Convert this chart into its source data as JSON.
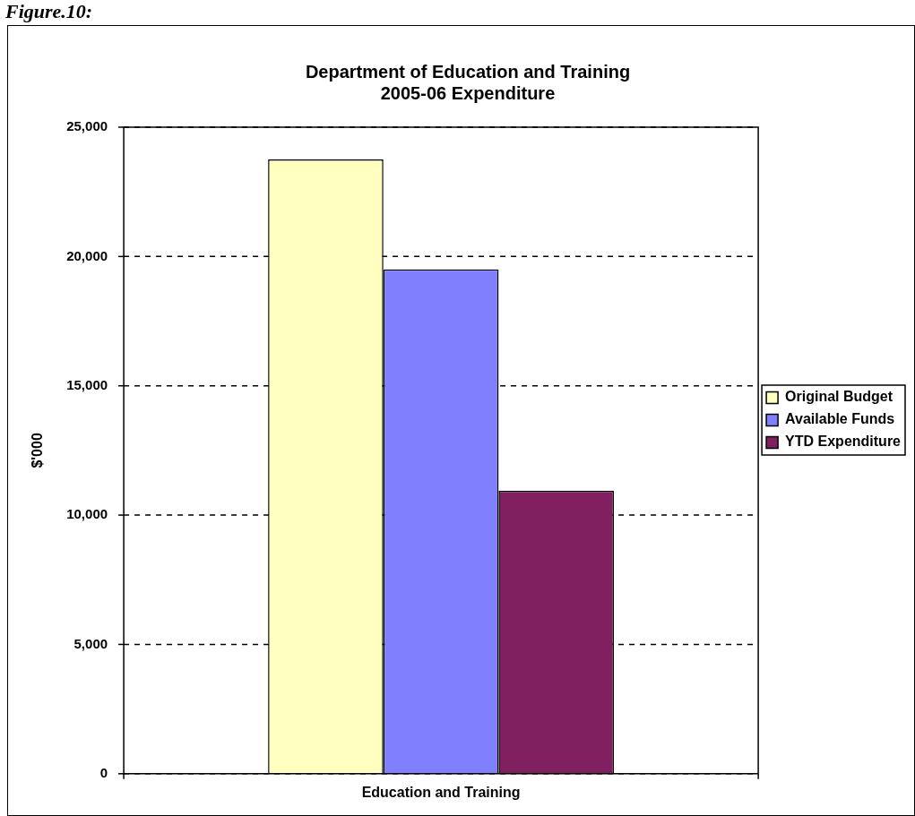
{
  "chart_data": {
    "type": "bar",
    "title": [
      "Department of Education and Training",
      "2005-06 Expenditure"
    ],
    "xlabel": "Education and Training",
    "ylabel": "$'000",
    "categories": [
      null
    ],
    "series": [
      {
        "name": "Original Budget",
        "color": "#ffffc0",
        "values": [
          23750
        ]
      },
      {
        "name": "Available Funds",
        "color": "#8080ff",
        "values": [
          19500
        ]
      },
      {
        "name": "YTD Expenditure",
        "color": "#802060",
        "values": [
          10950
        ]
      }
    ],
    "ylim": [
      0,
      25000
    ],
    "yticks": [
      0,
      {
        "value": 5000,
        "label": "5,000"
      },
      {
        "value": 10000,
        "label": "10,000"
      },
      {
        "value": 15000,
        "label": "15,000"
      },
      {
        "value": 20000,
        "label": "20,000"
      },
      {
        "value": 25000,
        "label": "25,000"
      }
    ],
    "grid": "y",
    "legend": "right",
    "annotations": [
      "Figure.10:"
    ]
  }
}
